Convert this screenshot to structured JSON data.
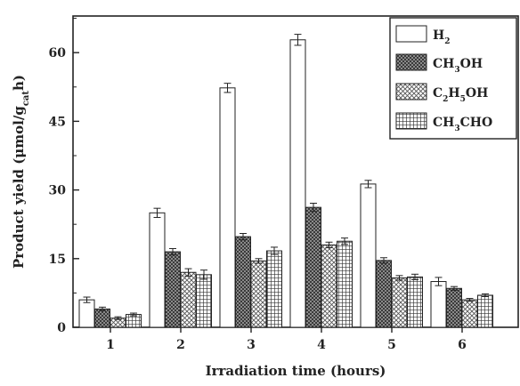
{
  "chart_data": {
    "type": "bar",
    "categories": [
      "1",
      "2",
      "3",
      "4",
      "5",
      "6"
    ],
    "series": [
      {
        "name": "H2",
        "name_main": "H",
        "name_sub": "2",
        "pattern": "blank",
        "values": [
          6,
          25,
          52.3,
          62.8,
          31.3,
          10
        ],
        "errors": [
          0.6,
          1.0,
          1.0,
          1.2,
          0.8,
          0.9
        ]
      },
      {
        "name": "CH3OH",
        "name_main": "CH",
        "name_sub": "3",
        "name_tail": "OH",
        "pattern": "dense-check",
        "values": [
          4,
          16.5,
          19.8,
          26.2,
          14.6,
          8.5
        ],
        "errors": [
          0.4,
          0.7,
          0.7,
          0.9,
          0.6,
          0.4
        ]
      },
      {
        "name": "C2H5OH",
        "name_main": "C",
        "name_sub": "2",
        "name_mid": "H",
        "name_sub2": "5",
        "name_tail": "OH",
        "pattern": "crosshatch",
        "values": [
          2,
          12,
          14.5,
          18,
          10.8,
          6
        ],
        "errors": [
          0.3,
          0.8,
          0.5,
          0.6,
          0.5,
          0.3
        ]
      },
      {
        "name": "CH3CHO",
        "name_main": "CH",
        "name_sub": "3",
        "name_tail": "CHO",
        "pattern": "grid",
        "values": [
          2.8,
          11.5,
          16.7,
          18.8,
          11,
          7
        ],
        "errors": [
          0.3,
          1.0,
          0.8,
          0.7,
          0.6,
          0.3
        ]
      }
    ],
    "xlabel": "Irradiation time (hours)",
    "ylabel": "Product yield (μmol/g",
    "ylabel_sub": "cat",
    "ylabel_tail": "h)",
    "yticks": [
      0,
      15,
      30,
      45,
      60
    ],
    "ylim": [
      0,
      68
    ],
    "grid": false,
    "legend_position": "top-right"
  }
}
